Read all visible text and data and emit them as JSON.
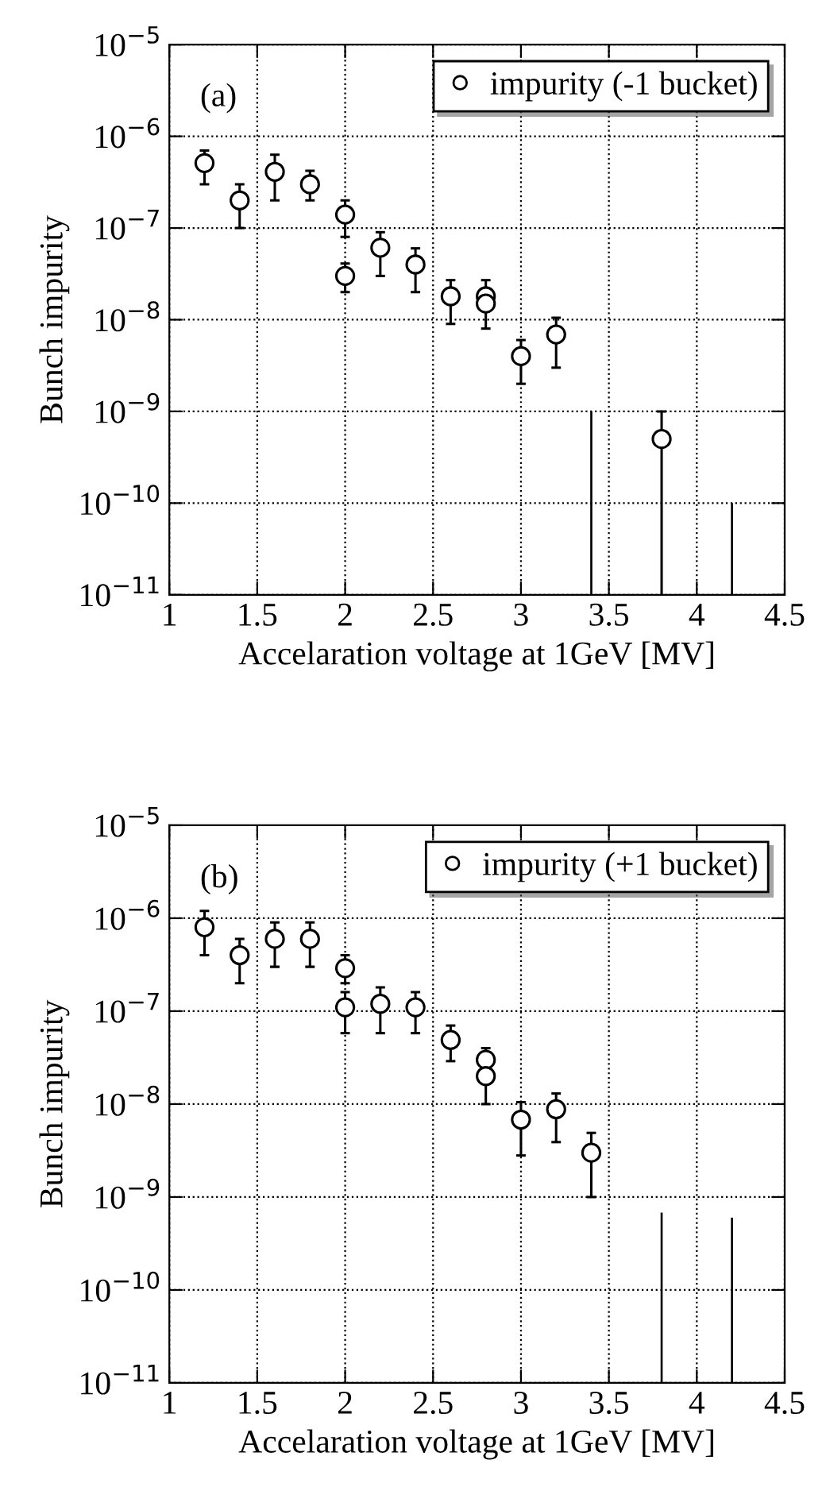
{
  "chart_data": [
    {
      "type": "scatter",
      "xlabel": "Accelaration voltage at 1GeV [MV]",
      "ylabel": "Bunch impurity",
      "annotations": [
        "(a)"
      ],
      "log": "y",
      "grid": true,
      "legend": "top right",
      "marker": "circle",
      "xlim": [
        1,
        4.5
      ],
      "xticks": [
        1,
        1.5,
        2,
        2.5,
        3,
        3.5,
        4,
        4.5
      ],
      "ylim": [
        1e-11,
        1e-05
      ],
      "yticks": [
        {
          "value": 1e-11,
          "label": "10$^{−11}$"
        },
        {
          "value": 1e-10,
          "label": "10$^{−10}$"
        },
        {
          "value": 1e-09,
          "label": "10$^{−9}$"
        },
        {
          "value": 1e-08,
          "label": "10$^{−8}$"
        },
        {
          "value": 1e-07,
          "label": "10$^{−7}$"
        },
        {
          "value": 1e-06,
          "label": "10$^{−6}$"
        },
        {
          "value": 1e-05,
          "label": "10$^{−5}$"
        }
      ],
      "series": [
        {
          "name": "impurity (-1 bucket)",
          "color": "#000000",
          "x": [
            1.2,
            1.4,
            1.6,
            1.8,
            2.0,
            2.0,
            2.2,
            2.4,
            2.6,
            2.8,
            2.8,
            3.0,
            3.2,
            3.8
          ],
          "values": [
            5.1e-07,
            2e-07,
            4.1e-07,
            3e-07,
            1.4e-07,
            3e-08,
            6.1e-08,
            4e-08,
            1.8e-08,
            1.8e-08,
            1.5e-08,
            4e-09,
            6.9e-09,
            5e-10
          ],
          "errors": [
            [
              3e-07,
              7e-07
            ],
            [
              1e-07,
              3e-07
            ],
            [
              2e-07,
              6.3e-07
            ],
            [
              2e-07,
              4.2e-07
            ],
            [
              8e-08,
              2e-07
            ],
            [
              2e-08,
              4.1e-08
            ],
            [
              3e-08,
              9e-08
            ],
            [
              2e-08,
              6e-08
            ],
            [
              9e-09,
              2.7e-08
            ],
            [
              8e-09,
              2.7e-08
            ],
            null,
            [
              2e-09,
              6e-09
            ],
            [
              3e-09,
              1.05e-08
            ],
            [
              1e-11,
              1e-09
            ]
          ]
        },
        {
          "type": "bar",
          "color": "#000000",
          "x": [
            3.4,
            4.2
          ],
          "base": [
            1e-11,
            1e-11
          ],
          "values": [
            9.9e-10,
            9e-11
          ]
        }
      ]
    },
    {
      "type": "scatter",
      "xlabel": "Accelaration voltage at 1GeV [MV]",
      "ylabel": "Bunch impurity",
      "annotations": [
        "(b)"
      ],
      "log": "y",
      "grid": true,
      "legend": "top right",
      "marker": "circle",
      "xlim": [
        1,
        4.5
      ],
      "xticks": [
        1,
        1.5,
        2,
        2.5,
        3,
        3.5,
        4,
        4.5
      ],
      "ylim": [
        1e-11,
        1e-05
      ],
      "yticks": [
        {
          "value": 1e-11,
          "label": "10$^{−11}$"
        },
        {
          "value": 1e-10,
          "label": "10$^{−10}$"
        },
        {
          "value": 1e-09,
          "label": "10$^{−9}$"
        },
        {
          "value": 1e-08,
          "label": "10$^{−8}$"
        },
        {
          "value": 1e-07,
          "label": "10$^{−7}$"
        },
        {
          "value": 1e-06,
          "label": "10$^{−6}$"
        },
        {
          "value": 1e-05,
          "label": "10$^{−5}$"
        }
      ],
      "series": [
        {
          "name": "impurity (+1 bucket)",
          "color": "#000000",
          "x": [
            1.2,
            1.4,
            1.6,
            1.8,
            2.0,
            2.0,
            2.2,
            2.4,
            2.6,
            2.8,
            2.8,
            3.0,
            3.2,
            3.4
          ],
          "values": [
            8e-07,
            4e-07,
            6e-07,
            6e-07,
            2.9e-07,
            1.1e-07,
            1.2e-07,
            1.1e-07,
            4.9e-08,
            3e-08,
            2e-08,
            6.8e-09,
            8.8e-09,
            3e-09
          ],
          "errors": [
            [
              4e-07,
              1.2e-06
            ],
            [
              2e-07,
              6e-07
            ],
            [
              3e-07,
              9e-07
            ],
            [
              3e-07,
              9e-07
            ],
            [
              2e-07,
              4e-07
            ],
            [
              5.8e-08,
              1.6e-07
            ],
            [
              5.8e-08,
              1.8e-07
            ],
            [
              5.8e-08,
              1.6e-07
            ],
            [
              2.9e-08,
              7e-08
            ],
            [
              1e-08,
              4e-08
            ],
            null,
            [
              2.8e-09,
              1.05e-08
            ],
            [
              3.9e-09,
              1.3e-08
            ],
            [
              1e-09,
              4.9e-09
            ]
          ]
        },
        {
          "type": "bar",
          "color": "#000000",
          "x": [
            3.8,
            4.2
          ],
          "base": [
            1e-11,
            1e-11
          ],
          "values": [
            6.7e-10,
            5.9e-10
          ]
        }
      ]
    }
  ]
}
